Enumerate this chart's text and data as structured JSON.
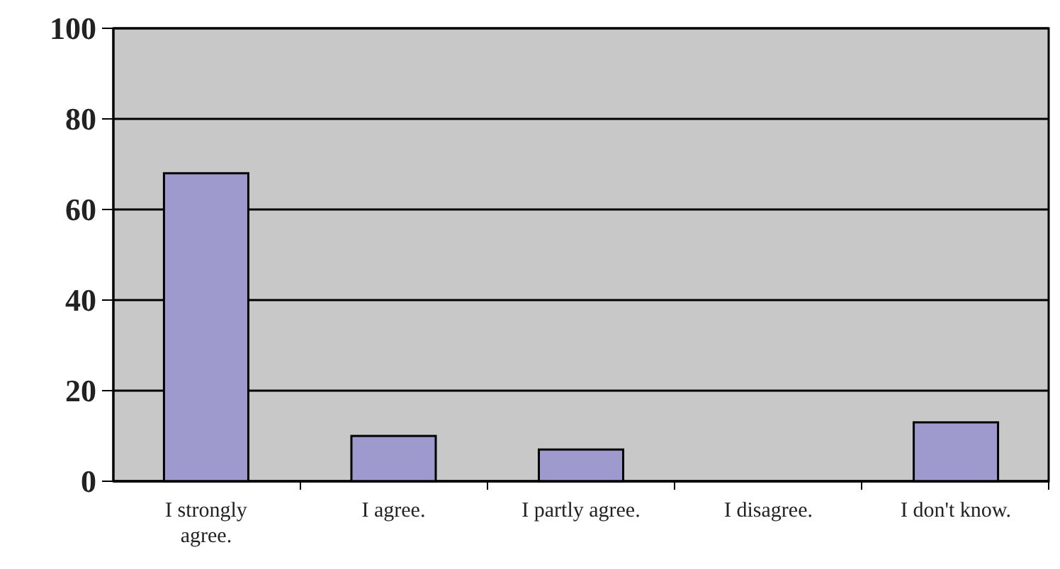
{
  "chart_data": {
    "type": "bar",
    "categories": [
      "I strongly agree.",
      "I agree.",
      "I partly agree.",
      "I disagree.",
      "I don't know."
    ],
    "values": [
      68,
      10,
      7,
      0,
      13
    ],
    "color": "#9e9acd",
    "ylim": [
      0,
      100
    ],
    "yticks": [
      0,
      20,
      40,
      60,
      80,
      100
    ],
    "grid": "y"
  }
}
